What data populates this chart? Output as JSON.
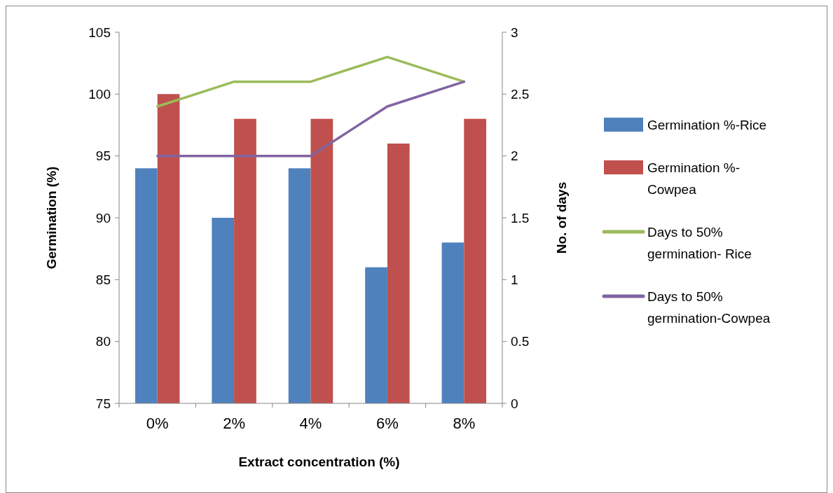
{
  "chart_data": {
    "type": "bar",
    "categories": [
      "0%",
      "2%",
      "4%",
      "6%",
      "8%"
    ],
    "xlabel": "Extract concentration (%)",
    "ylabel": "Germination (%)",
    "y2label": "No. of days",
    "ylim": [
      75,
      105
    ],
    "yticks": [
      75,
      80,
      85,
      90,
      95,
      100,
      105
    ],
    "y2lim": [
      0,
      3
    ],
    "y2ticks": [
      0,
      0.5,
      1,
      1.5,
      2,
      2.5,
      3
    ],
    "grid": false,
    "legend": "right",
    "series": [
      {
        "name": "Germination %-Rice",
        "color": "#4f81bd",
        "values": [
          94,
          90,
          94,
          86,
          88
        ]
      },
      {
        "name": "Germination %-Cowpea",
        "color": "#c0504d",
        "values": [
          100,
          98,
          98,
          96,
          98
        ]
      },
      {
        "name": "Days to 50% germination- Rice",
        "type": "line",
        "axis": "y2",
        "color": "#9bbb59",
        "values": [
          2.4,
          2.6,
          2.6,
          2.8,
          2.6
        ]
      },
      {
        "name": "Days to 50% germination-Cowpea",
        "type": "line",
        "axis": "y2",
        "color": "#8064a2",
        "values": [
          2,
          2,
          2,
          2.4,
          2.6
        ]
      }
    ]
  }
}
